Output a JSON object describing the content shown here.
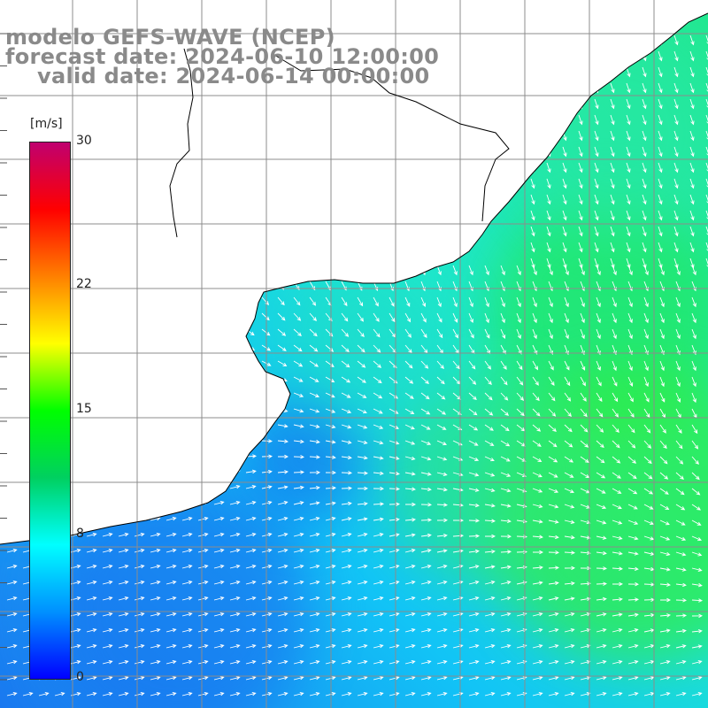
{
  "header": {
    "model_title": "modelo GEFS-WAVE (NCEP)",
    "forecast_line": "forecast date: 2024-06-10 12:00:00",
    "valid_line": "valid date: 2024-06-14 00:00:00"
  },
  "legend": {
    "unit": "[m/s]",
    "ticks": [
      "30",
      "22",
      "15",
      "8",
      "0"
    ],
    "tick_values": [
      30,
      22,
      15,
      8,
      0
    ],
    "range": [
      0,
      30
    ],
    "colors": [
      "#0000ff",
      "#0090ff",
      "#00ffff",
      "#00d060",
      "#00ff00",
      "#ffff00",
      "#ff8000",
      "#ff0000",
      "#c0006f"
    ]
  },
  "map": {
    "field": "wind speed and direction",
    "land_color": "#ffffff",
    "coastline_color": "#000000",
    "grid_color": "#8c8c8c",
    "arrow_color": "#ffffff"
  }
}
